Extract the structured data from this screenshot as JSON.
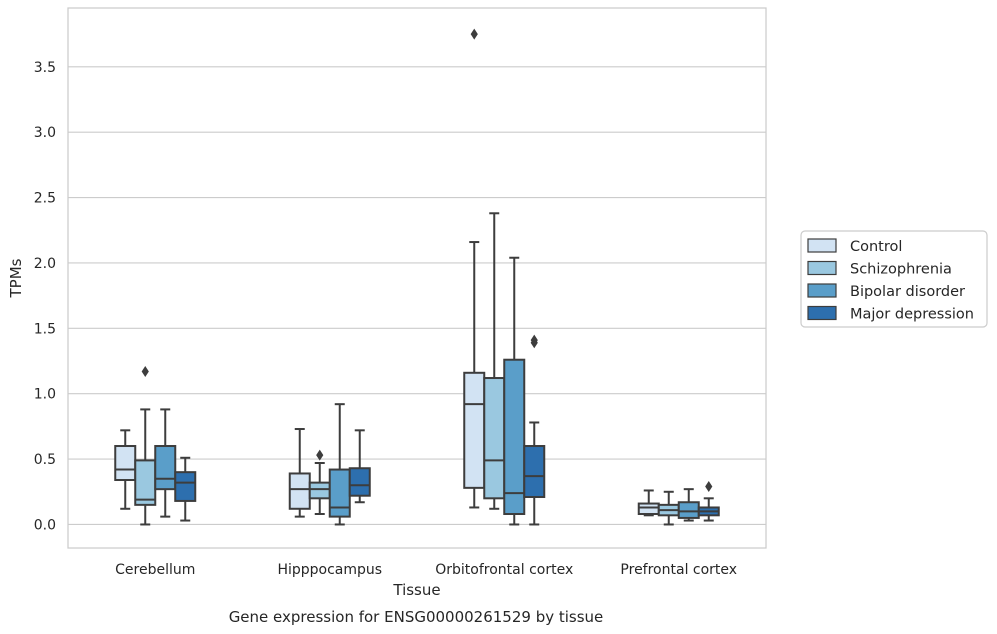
{
  "chart_data": {
    "type": "box",
    "xlabel": "Tissue",
    "ylabel": "TPMs",
    "caption": "Gene expression for ENSG00000261529 by tissue",
    "categories": [
      "Cerebellum",
      "Hipppocampus",
      "Orbitofrontal cortex",
      "Prefrontal cortex"
    ],
    "ylim": [
      -0.18,
      3.95
    ],
    "yticks": [
      "0.0",
      "0.5",
      "1.0",
      "1.5",
      "2.0",
      "2.5",
      "3.0",
      "3.5"
    ],
    "grid": true,
    "legend_placement": "right",
    "series": [
      {
        "name": "Control",
        "color": "#d2e3f3",
        "boxes": [
          {
            "whislo": 0.12,
            "q1": 0.34,
            "med": 0.42,
            "q3": 0.6,
            "whishi": 0.72,
            "fliers": []
          },
          {
            "whislo": 0.06,
            "q1": 0.12,
            "med": 0.27,
            "q3": 0.39,
            "whishi": 0.73,
            "fliers": []
          },
          {
            "whislo": 0.13,
            "q1": 0.28,
            "med": 0.92,
            "q3": 1.16,
            "whishi": 2.16,
            "fliers": [
              3.75
            ]
          },
          {
            "whislo": 0.07,
            "q1": 0.08,
            "med": 0.13,
            "q3": 0.16,
            "whishi": 0.26,
            "fliers": []
          }
        ]
      },
      {
        "name": "Schizophrenia",
        "color": "#9ac8e0",
        "boxes": [
          {
            "whislo": 0.0,
            "q1": 0.15,
            "med": 0.19,
            "q3": 0.49,
            "whishi": 0.88,
            "fliers": [
              1.17
            ]
          },
          {
            "whislo": 0.08,
            "q1": 0.2,
            "med": 0.27,
            "q3": 0.32,
            "whishi": 0.47,
            "fliers": [
              0.53
            ]
          },
          {
            "whislo": 0.12,
            "q1": 0.2,
            "med": 0.49,
            "q3": 1.12,
            "whishi": 2.38,
            "fliers": []
          },
          {
            "whislo": 0.0,
            "q1": 0.07,
            "med": 0.11,
            "q3": 0.15,
            "whishi": 0.25,
            "fliers": []
          }
        ]
      },
      {
        "name": "Bipolar disorder",
        "color": "#5a9ec9",
        "boxes": [
          {
            "whislo": 0.06,
            "q1": 0.27,
            "med": 0.35,
            "q3": 0.6,
            "whishi": 0.88,
            "fliers": []
          },
          {
            "whislo": 0.0,
            "q1": 0.06,
            "med": 0.13,
            "q3": 0.42,
            "whishi": 0.92,
            "fliers": []
          },
          {
            "whislo": 0.0,
            "q1": 0.08,
            "med": 0.24,
            "q3": 1.26,
            "whishi": 2.04,
            "fliers": []
          },
          {
            "whislo": 0.03,
            "q1": 0.05,
            "med": 0.1,
            "q3": 0.17,
            "whishi": 0.27,
            "fliers": []
          }
        ]
      },
      {
        "name": "Major depression",
        "color": "#2d6fae",
        "boxes": [
          {
            "whislo": 0.03,
            "q1": 0.18,
            "med": 0.32,
            "q3": 0.4,
            "whishi": 0.51,
            "fliers": []
          },
          {
            "whislo": 0.17,
            "q1": 0.22,
            "med": 0.3,
            "q3": 0.43,
            "whishi": 0.72,
            "fliers": []
          },
          {
            "whislo": 0.0,
            "q1": 0.21,
            "med": 0.37,
            "q3": 0.6,
            "whishi": 0.78,
            "fliers": [
              1.39,
              1.41
            ]
          },
          {
            "whislo": 0.03,
            "q1": 0.07,
            "med": 0.1,
            "q3": 0.13,
            "whishi": 0.2,
            "fliers": [
              0.29
            ]
          }
        ]
      }
    ]
  }
}
